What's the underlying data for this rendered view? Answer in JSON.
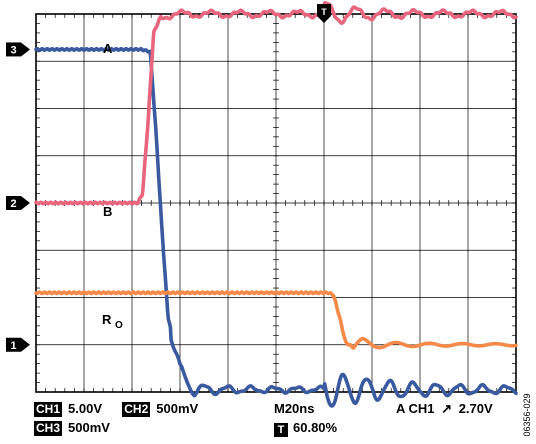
{
  "chart_data": {
    "type": "line",
    "title": "",
    "xlabel": "",
    "ylabel": "",
    "divisions": {
      "x": 10,
      "y": 8
    },
    "grid": true,
    "xlim": [
      0,
      10
    ],
    "ylim": [
      0,
      8
    ],
    "series": [
      {
        "id": "A",
        "name": "A",
        "channel": "3",
        "color": "#3a5aa0",
        "x": [
          0,
          1,
          2,
          2.2,
          2.38,
          2.5,
          2.62,
          2.75,
          3,
          3.3,
          3.6,
          4,
          5,
          6,
          7,
          7.6,
          8,
          8.5,
          9,
          9.5,
          10
        ],
        "y": [
          7.25,
          7.25,
          7.25,
          7.25,
          7.2,
          5.5,
          3.5,
          1.6,
          0.4,
          0.05,
          0.05,
          0.05,
          0.05,
          0.05,
          0.05,
          0.05,
          0.05,
          0.05,
          0.05,
          0.05,
          0.05
        ]
      },
      {
        "id": "B",
        "name": "B",
        "channel": "2",
        "color": "#e8657e",
        "x": [
          0,
          1,
          2,
          2.12,
          2.22,
          2.34,
          2.45,
          2.6,
          3,
          4,
          5,
          6,
          7,
          7.6,
          8,
          8.5,
          9,
          9.5,
          10
        ],
        "y": [
          4.0,
          4.0,
          4.0,
          4.0,
          4.2,
          5.8,
          7.6,
          7.95,
          8.0,
          8.0,
          8.0,
          8.0,
          8.0,
          8.0,
          8.0,
          8.0,
          8.0,
          8.0,
          8.0
        ]
      },
      {
        "id": "RO",
        "name": "R",
        "name_sub": "O",
        "channel": "1",
        "color": "#f5894a",
        "x": [
          0,
          1,
          2,
          3,
          4,
          5,
          6,
          6.1,
          6.2,
          6.32,
          6.45,
          6.6,
          6.8,
          7,
          8,
          9,
          10
        ],
        "y": [
          2.1,
          2.1,
          2.1,
          2.1,
          2.1,
          2.1,
          2.1,
          2.1,
          2.05,
          1.6,
          1.05,
          0.95,
          1.05,
          1.0,
          1.0,
          1.0,
          1.0
        ]
      }
    ],
    "annotations": {
      "trigger_marker": "T",
      "trigger_x": 6.0,
      "channel_markers": [
        {
          "label": "3",
          "y": 7.25
        },
        {
          "label": "2",
          "y": 4.0
        },
        {
          "label": "1",
          "y": 1.0
        }
      ]
    }
  },
  "status": {
    "ch1_tag": "CH1",
    "ch1_value": "5.00V",
    "ch2_tag": "CH2",
    "ch2_value": "500mV",
    "ch3_tag": "CH3",
    "ch3_value": "500mV",
    "timebase": "M20ns",
    "trigger_source": "A  CH1",
    "trigger_edge_glyph": "↗",
    "trigger_level": "2.70V",
    "trigger_icon": "T",
    "trigger_position": "60.80%"
  },
  "figure_id": "06356-029"
}
